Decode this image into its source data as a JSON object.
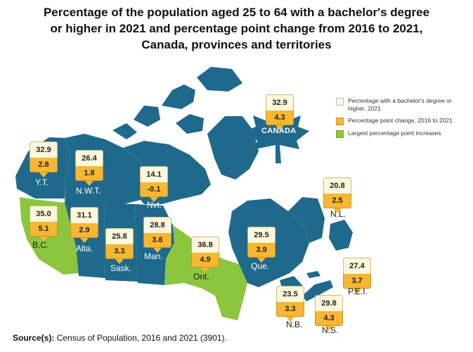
{
  "title": {
    "line1": "Percentage of the population aged 25 to 64 with a bachelor's degree",
    "line2": "or higher in 2021 and percentage point change from 2016 to 2021,",
    "line3": "Canada, provinces and territories"
  },
  "legend": {
    "items": [
      {
        "label": "Percentage with a bachelor's degree or higher, 2021",
        "color": "#fdf7dc"
      },
      {
        "label": "Percentage point change, 2016 to 2021",
        "color": "#f7b733"
      },
      {
        "label": "Largest percentage point increases",
        "color": "#8cc63f"
      }
    ]
  },
  "colors": {
    "region": "#1f6a8c",
    "highlight": "#8cc63f",
    "water": "#ffffff"
  },
  "canada": {
    "name": "CANADA",
    "pct": "32.9",
    "change": "4.3"
  },
  "regions": [
    {
      "abbr": "Y.T.",
      "pct": "32.9",
      "change": "2.8"
    },
    {
      "abbr": "N.W.T.",
      "pct": "26.4",
      "change": "1.8"
    },
    {
      "abbr": "Nvt.",
      "pct": "14.1",
      "change": "-0.1"
    },
    {
      "abbr": "B.C.",
      "pct": "35.0",
      "change": "5.1"
    },
    {
      "abbr": "Alta.",
      "pct": "31.1",
      "change": "2.9"
    },
    {
      "abbr": "Sask.",
      "pct": "25.8",
      "change": "3.3"
    },
    {
      "abbr": "Man.",
      "pct": "28.8",
      "change": "3.6"
    },
    {
      "abbr": "Ont.",
      "pct": "36.8",
      "change": "4.9"
    },
    {
      "abbr": "Que.",
      "pct": "29.5",
      "change": "3.9"
    },
    {
      "abbr": "N.L.",
      "pct": "20.8",
      "change": "2.5"
    },
    {
      "abbr": "P.E.I.",
      "pct": "27.4",
      "change": "3.7"
    },
    {
      "abbr": "N.B.",
      "pct": "23.5",
      "change": "3.3"
    },
    {
      "abbr": "N.S.",
      "pct": "29.8",
      "change": "4.3"
    }
  ],
  "source": {
    "label": "Source(s):",
    "text": "Census of Population, 2016 and 2021 (3901)."
  }
}
